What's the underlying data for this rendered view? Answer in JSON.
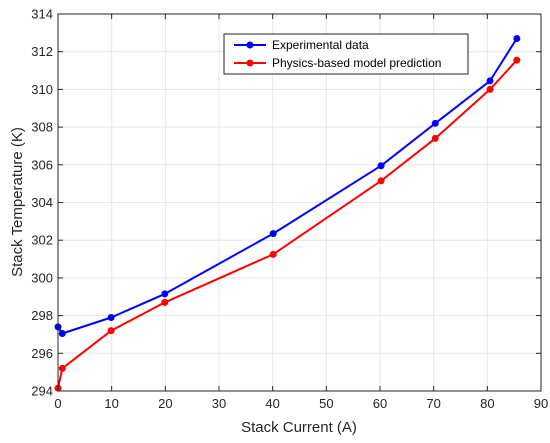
{
  "chart_data": {
    "type": "line",
    "xlabel": "Stack Current (A)",
    "ylabel": "Stack Temperature (K)",
    "xlim": [
      0,
      90
    ],
    "ylim": [
      294,
      314
    ],
    "xticks": [
      0,
      10,
      20,
      30,
      40,
      50,
      60,
      70,
      80,
      90
    ],
    "yticks": [
      294,
      296,
      298,
      300,
      302,
      304,
      306,
      308,
      310,
      312,
      314
    ],
    "grid": true,
    "legend_position": "top-right",
    "series": [
      {
        "name": "Experimental data",
        "color": "#0000ff",
        "marker": "circle",
        "x": [
          0,
          0.8,
          9.9,
          19.9,
          40.1,
          60.2,
          70.3,
          80.5,
          85.5
        ],
        "y": [
          297.4,
          297.05,
          297.9,
          299.15,
          302.35,
          305.95,
          308.2,
          310.45,
          312.7
        ]
      },
      {
        "name": "Physics-based model prediction",
        "color": "#ff0000",
        "marker": "circle",
        "x": [
          0,
          0.8,
          9.9,
          19.9,
          40.1,
          60.2,
          70.3,
          80.5,
          85.5
        ],
        "y": [
          294.15,
          295.2,
          297.2,
          298.7,
          301.25,
          305.15,
          307.4,
          310.0,
          311.55
        ]
      }
    ]
  }
}
